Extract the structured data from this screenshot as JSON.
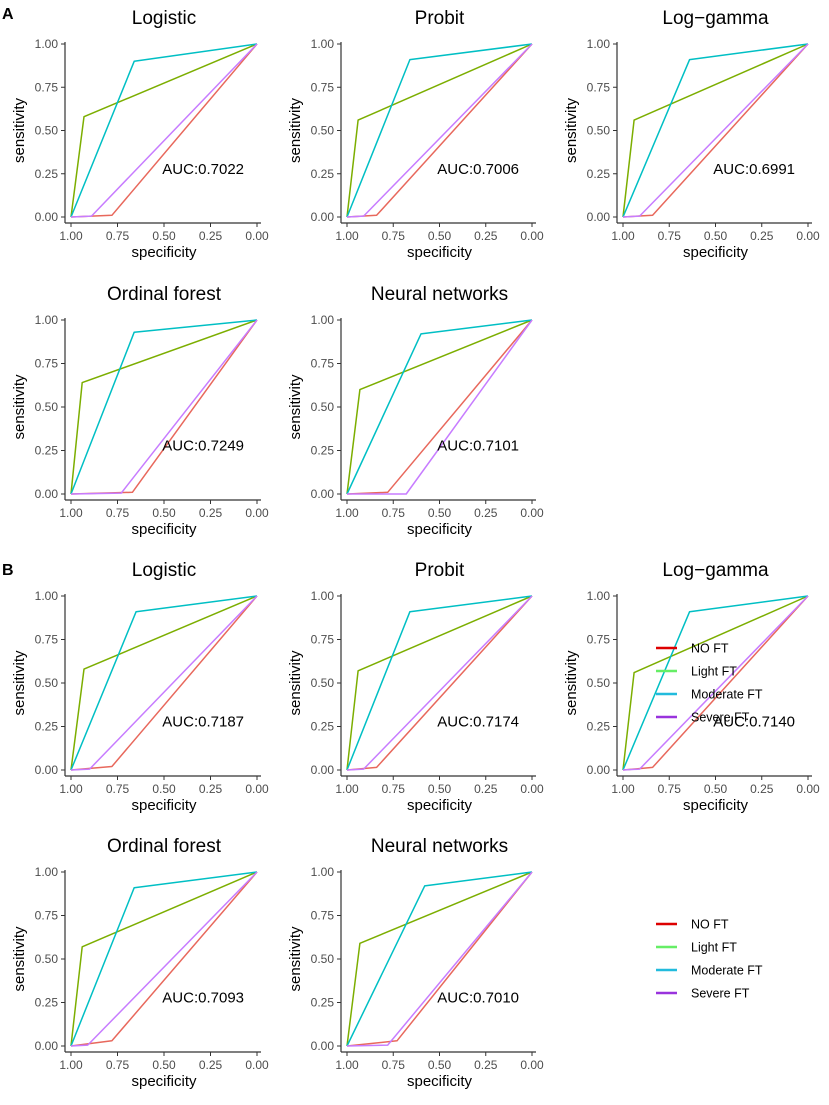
{
  "colors": {
    "axis": "#333333",
    "tick_text": "#4d4d4d",
    "label_text": "#000000",
    "NO FT": "#e8685c",
    "Light FT": "#7cae00",
    "Moderate FT": "#00bfc4",
    "Severe FT": "#c77cff"
  },
  "legend_swatch_colors": {
    "NO FT": "#dd0000",
    "Light FT": "#66ee66",
    "Moderate FT": "#22bbdd",
    "Severe FT": "#9933dd"
  },
  "legend_items": [
    "NO FT",
    "Light FT",
    "Moderate FT",
    "Severe FT"
  ],
  "chart_data": [
    {
      "panel_label": "A",
      "type": "line",
      "title": "Logistic",
      "xlabel": "specificity",
      "ylabel": "sensitivity",
      "xlim": [
        1,
        0
      ],
      "ylim": [
        0,
        1
      ],
      "x_ticks": [
        "1.00",
        "0.75",
        "0.50",
        "0.25",
        "0.00"
      ],
      "y_ticks": [
        "0.00",
        "0.25",
        "0.50",
        "0.75",
        "1.00"
      ],
      "annotation": "AUC:0.7022",
      "series": [
        {
          "name": "NO FT",
          "specificity": [
            1,
            0.78,
            0
          ],
          "sensitivity": [
            0,
            0.01,
            1
          ]
        },
        {
          "name": "Light FT",
          "specificity": [
            1,
            0.93,
            0
          ],
          "sensitivity": [
            0,
            0.58,
            1
          ]
        },
        {
          "name": "Moderate FT",
          "specificity": [
            1,
            0.66,
            0
          ],
          "sensitivity": [
            0,
            0.9,
            1
          ]
        },
        {
          "name": "Severe FT",
          "specificity": [
            1,
            0.89,
            0
          ],
          "sensitivity": [
            0,
            0.005,
            1
          ]
        }
      ]
    },
    {
      "type": "line",
      "title": "Probit",
      "xlabel": "specificity",
      "ylabel": "sensitivity",
      "xlim": [
        1,
        0
      ],
      "ylim": [
        0,
        1
      ],
      "x_ticks": [
        "1.00",
        "0.75",
        "0.50",
        "0.25",
        "0.00"
      ],
      "y_ticks": [
        "0.00",
        "0.25",
        "0.50",
        "0.75",
        "1.00"
      ],
      "annotation": "AUC:0.7006",
      "series": [
        {
          "name": "NO FT",
          "specificity": [
            1,
            0.84,
            0
          ],
          "sensitivity": [
            0,
            0.01,
            1
          ]
        },
        {
          "name": "Light FT",
          "specificity": [
            1,
            0.94,
            0
          ],
          "sensitivity": [
            0,
            0.56,
            1
          ]
        },
        {
          "name": "Moderate FT",
          "specificity": [
            1,
            0.66,
            0
          ],
          "sensitivity": [
            0,
            0.91,
            1
          ]
        },
        {
          "name": "Severe FT",
          "specificity": [
            1,
            0.91,
            0
          ],
          "sensitivity": [
            0,
            0.005,
            1
          ]
        }
      ]
    },
    {
      "type": "line",
      "title": "Log−gamma",
      "xlabel": "specificity",
      "ylabel": "sensitivity",
      "xlim": [
        1,
        0
      ],
      "ylim": [
        0,
        1
      ],
      "x_ticks": [
        "1.00",
        "0.75",
        "0.50",
        "0.25",
        "0.00"
      ],
      "y_ticks": [
        "0.00",
        "0.25",
        "0.50",
        "0.75",
        "1.00"
      ],
      "annotation": "AUC:0.6991",
      "series": [
        {
          "name": "NO FT",
          "specificity": [
            1,
            0.84,
            0
          ],
          "sensitivity": [
            0,
            0.01,
            1
          ]
        },
        {
          "name": "Light FT",
          "specificity": [
            1,
            0.94,
            0
          ],
          "sensitivity": [
            0,
            0.56,
            1
          ]
        },
        {
          "name": "Moderate FT",
          "specificity": [
            1,
            0.64,
            0
          ],
          "sensitivity": [
            0,
            0.91,
            1
          ]
        },
        {
          "name": "Severe FT",
          "specificity": [
            1,
            0.91,
            0
          ],
          "sensitivity": [
            0,
            0.005,
            1
          ]
        }
      ]
    },
    {
      "type": "line",
      "title": "Ordinal forest",
      "xlabel": "specificity",
      "ylabel": "sensitivity",
      "xlim": [
        1,
        0
      ],
      "ylim": [
        0,
        1
      ],
      "x_ticks": [
        "1.00",
        "0.75",
        "0.50",
        "0.25",
        "0.00"
      ],
      "y_ticks": [
        "0.00",
        "0.25",
        "0.50",
        "0.75",
        "1.00"
      ],
      "annotation": "AUC:0.7249",
      "series": [
        {
          "name": "NO FT",
          "specificity": [
            1,
            0.67,
            0
          ],
          "sensitivity": [
            0,
            0.01,
            1
          ]
        },
        {
          "name": "Light FT",
          "specificity": [
            1,
            0.94,
            0
          ],
          "sensitivity": [
            0,
            0.64,
            1
          ]
        },
        {
          "name": "Moderate FT",
          "specificity": [
            1,
            0.66,
            0
          ],
          "sensitivity": [
            0,
            0.93,
            1
          ]
        },
        {
          "name": "Severe FT",
          "specificity": [
            1,
            0.73,
            0
          ],
          "sensitivity": [
            0,
            0.005,
            1
          ]
        }
      ]
    },
    {
      "type": "line",
      "title": "Neural networks",
      "xlabel": "specificity",
      "ylabel": "sensitivity",
      "xlim": [
        1,
        0
      ],
      "ylim": [
        0,
        1
      ],
      "x_ticks": [
        "1.00",
        "0.75",
        "0.50",
        "0.25",
        "0.00"
      ],
      "y_ticks": [
        "0.00",
        "0.25",
        "0.50",
        "0.75",
        "1.00"
      ],
      "annotation": "AUC:0.7101",
      "series": [
        {
          "name": "NO FT",
          "specificity": [
            1,
            0.78,
            0
          ],
          "sensitivity": [
            0,
            0.01,
            1
          ]
        },
        {
          "name": "Light FT",
          "specificity": [
            1,
            0.93,
            0
          ],
          "sensitivity": [
            0,
            0.6,
            1
          ]
        },
        {
          "name": "Moderate FT",
          "specificity": [
            1,
            0.6,
            0
          ],
          "sensitivity": [
            0,
            0.92,
            1
          ]
        },
        {
          "name": "Severe FT",
          "specificity": [
            1,
            0.68,
            0
          ],
          "sensitivity": [
            0,
            0.0,
            1
          ]
        }
      ]
    },
    {
      "panel_label": "B",
      "type": "line",
      "title": "Logistic",
      "xlabel": "specificity",
      "ylabel": "sensitivity",
      "xlim": [
        1,
        0
      ],
      "ylim": [
        0,
        1
      ],
      "x_ticks": [
        "1.00",
        "0.75",
        "0.50",
        "0.25",
        "0.00"
      ],
      "y_ticks": [
        "0.00",
        "0.25",
        "0.50",
        "0.75",
        "1.00"
      ],
      "annotation": "AUC:0.7187",
      "series": [
        {
          "name": "NO FT",
          "specificity": [
            1,
            0.78,
            0
          ],
          "sensitivity": [
            0,
            0.02,
            1
          ]
        },
        {
          "name": "Light FT",
          "specificity": [
            1,
            0.93,
            0
          ],
          "sensitivity": [
            0,
            0.58,
            1
          ]
        },
        {
          "name": "Moderate FT",
          "specificity": [
            1,
            0.65,
            0
          ],
          "sensitivity": [
            0,
            0.91,
            1
          ]
        },
        {
          "name": "Severe FT",
          "specificity": [
            1,
            0.9,
            0
          ],
          "sensitivity": [
            0,
            0.005,
            1
          ]
        }
      ]
    },
    {
      "type": "line",
      "title": "Probit",
      "xlabel": "specificity",
      "ylabel": "sensitivity",
      "xlim": [
        1,
        0
      ],
      "ylim": [
        0,
        1
      ],
      "x_ticks": [
        "1.00",
        "0.75",
        "0.50",
        "0.25",
        "0.00"
      ],
      "y_ticks": [
        "0.00",
        "0.25",
        "0.50",
        "0.75",
        "1.00"
      ],
      "annotation": "AUC:0.7174",
      "series": [
        {
          "name": "NO FT",
          "specificity": [
            1,
            0.84,
            0
          ],
          "sensitivity": [
            0,
            0.015,
            1
          ]
        },
        {
          "name": "Light FT",
          "specificity": [
            1,
            0.94,
            0
          ],
          "sensitivity": [
            0,
            0.57,
            1
          ]
        },
        {
          "name": "Moderate FT",
          "specificity": [
            1,
            0.66,
            0
          ],
          "sensitivity": [
            0,
            0.91,
            1
          ]
        },
        {
          "name": "Severe FT",
          "specificity": [
            1,
            0.91,
            0
          ],
          "sensitivity": [
            0,
            0.005,
            1
          ]
        }
      ]
    },
    {
      "type": "line",
      "title": "Log−gamma",
      "xlabel": "specificity",
      "ylabel": "sensitivity",
      "xlim": [
        1,
        0
      ],
      "ylim": [
        0,
        1
      ],
      "x_ticks": [
        "1.00",
        "0.75",
        "0.50",
        "0.25",
        "0.00"
      ],
      "y_ticks": [
        "0.00",
        "0.25",
        "0.50",
        "0.75",
        "1.00"
      ],
      "annotation": "AUC:0.7140",
      "series": [
        {
          "name": "NO FT",
          "specificity": [
            1,
            0.84,
            0
          ],
          "sensitivity": [
            0,
            0.015,
            1
          ]
        },
        {
          "name": "Light FT",
          "specificity": [
            1,
            0.94,
            0
          ],
          "sensitivity": [
            0,
            0.56,
            1
          ]
        },
        {
          "name": "Moderate FT",
          "specificity": [
            1,
            0.64,
            0
          ],
          "sensitivity": [
            0,
            0.91,
            1
          ]
        },
        {
          "name": "Severe FT",
          "specificity": [
            1,
            0.91,
            0
          ],
          "sensitivity": [
            0,
            0.005,
            1
          ]
        }
      ]
    },
    {
      "type": "line",
      "title": "Ordinal forest",
      "xlabel": "specificity",
      "ylabel": "sensitivity",
      "xlim": [
        1,
        0
      ],
      "ylim": [
        0,
        1
      ],
      "x_ticks": [
        "1.00",
        "0.75",
        "0.50",
        "0.25",
        "0.00"
      ],
      "y_ticks": [
        "0.00",
        "0.25",
        "0.50",
        "0.75",
        "1.00"
      ],
      "annotation": "AUC:0.7093",
      "series": [
        {
          "name": "NO FT",
          "specificity": [
            1,
            0.78,
            0
          ],
          "sensitivity": [
            0,
            0.03,
            1
          ]
        },
        {
          "name": "Light FT",
          "specificity": [
            1,
            0.94,
            0
          ],
          "sensitivity": [
            0,
            0.57,
            1
          ]
        },
        {
          "name": "Moderate FT",
          "specificity": [
            1,
            0.66,
            0
          ],
          "sensitivity": [
            0,
            0.91,
            1
          ]
        },
        {
          "name": "Severe FT",
          "specificity": [
            1,
            0.91,
            0
          ],
          "sensitivity": [
            0,
            0.005,
            1
          ]
        }
      ]
    },
    {
      "type": "line",
      "title": "Neural networks",
      "xlabel": "specificity",
      "ylabel": "sensitivity",
      "xlim": [
        1,
        0
      ],
      "ylim": [
        0,
        1
      ],
      "x_ticks": [
        "1.00",
        "0.75",
        "0.50",
        "0.25",
        "0.00"
      ],
      "y_ticks": [
        "0.00",
        "0.25",
        "0.50",
        "0.75",
        "1.00"
      ],
      "annotation": "AUC:0.7010",
      "series": [
        {
          "name": "NO FT",
          "specificity": [
            1,
            0.73,
            0
          ],
          "sensitivity": [
            0,
            0.03,
            1
          ]
        },
        {
          "name": "Light FT",
          "specificity": [
            1,
            0.93,
            0
          ],
          "sensitivity": [
            0,
            0.59,
            1
          ]
        },
        {
          "name": "Moderate FT",
          "specificity": [
            1,
            0.58,
            0
          ],
          "sensitivity": [
            0,
            0.92,
            1
          ]
        },
        {
          "name": "Severe FT",
          "specificity": [
            1,
            0.78,
            0
          ],
          "sensitivity": [
            0,
            0.005,
            1
          ]
        }
      ]
    }
  ]
}
